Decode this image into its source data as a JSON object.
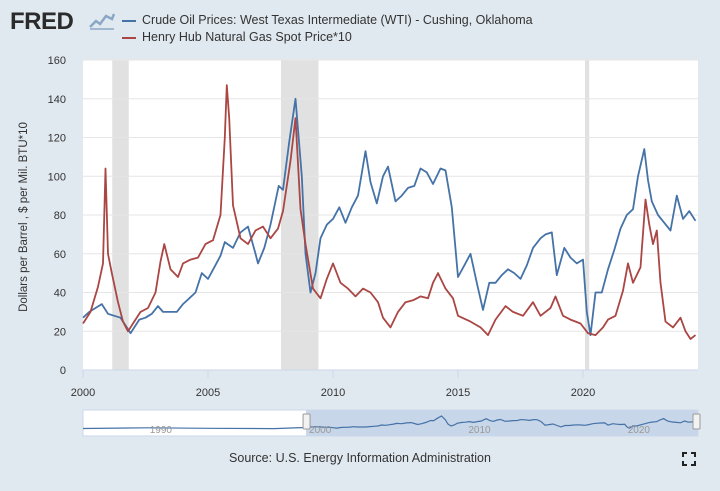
{
  "header": {
    "logo_text": "FRED",
    "logo_icon": "fred-chart-icon"
  },
  "legend": [
    {
      "label": "Crude Oil Prices: West Texas Intermediate (WTI) - Cushing, Oklahoma",
      "color": "#4572a7"
    },
    {
      "label": "Henry Hub Natural Gas Spot Price*10",
      "color": "#aa4643"
    }
  ],
  "source": "Source: U.S. Energy Information Administration",
  "fullscreen_icon": "fullscreen-icon",
  "chart_data": {
    "type": "line",
    "title": "",
    "xlabel": "",
    "ylabel": "Dollars per Barrel , $ per Mil. BTU*10",
    "ylim": [
      0,
      160
    ],
    "xlim": [
      2000,
      2024.6
    ],
    "yticks": [
      "0",
      "20",
      "40",
      "60",
      "80",
      "100",
      "120",
      "140",
      "160"
    ],
    "xticks": [
      "2000",
      "2005",
      "2010",
      "2015",
      "2020"
    ],
    "recessions": [
      [
        2001.17,
        2001.83
      ],
      [
        2007.92,
        2009.42
      ],
      [
        2020.08,
        2020.25
      ]
    ],
    "series": [
      {
        "name": "Crude Oil Prices: West Texas Intermediate (WTI) - Cushing, Oklahoma",
        "x": [
          2000.0,
          2000.25,
          2000.5,
          2000.75,
          2001.0,
          2001.25,
          2001.5,
          2001.75,
          2001.9,
          2002.25,
          2002.5,
          2002.75,
          2003.0,
          2003.2,
          2003.5,
          2003.75,
          2004.0,
          2004.25,
          2004.5,
          2004.75,
          2005.0,
          2005.25,
          2005.5,
          2005.67,
          2006.0,
          2006.3,
          2006.6,
          2006.9,
          2007.0,
          2007.25,
          2007.5,
          2007.83,
          2008.0,
          2008.25,
          2008.5,
          2008.75,
          2008.9,
          2009.1,
          2009.3,
          2009.5,
          2009.75,
          2010.0,
          2010.25,
          2010.5,
          2010.75,
          2011.0,
          2011.3,
          2011.5,
          2011.75,
          2012.0,
          2012.2,
          2012.5,
          2012.75,
          2013.0,
          2013.25,
          2013.5,
          2013.75,
          2014.0,
          2014.3,
          2014.5,
          2014.75,
          2015.0,
          2015.25,
          2015.5,
          2015.75,
          2016.0,
          2016.25,
          2016.5,
          2016.75,
          2017.0,
          2017.25,
          2017.5,
          2017.75,
          2018.0,
          2018.3,
          2018.5,
          2018.75,
          2018.95,
          2019.25,
          2019.5,
          2019.75,
          2020.0,
          2020.15,
          2020.3,
          2020.5,
          2020.75,
          2021.0,
          2021.25,
          2021.5,
          2021.75,
          2022.0,
          2022.2,
          2022.45,
          2022.6,
          2022.75,
          2023.0,
          2023.25,
          2023.5,
          2023.75,
          2024.0,
          2024.25,
          2024.5
        ],
        "values": [
          27,
          30,
          32,
          34,
          29,
          28,
          27,
          22,
          19,
          26,
          27,
          29,
          33,
          30,
          30,
          30,
          34,
          37,
          40,
          50,
          47,
          53,
          59,
          66,
          63,
          71,
          74,
          60,
          55,
          63,
          75,
          95,
          93,
          118,
          140,
          100,
          60,
          40,
          50,
          68,
          75,
          78,
          84,
          76,
          84,
          90,
          113,
          97,
          86,
          100,
          105,
          87,
          90,
          94,
          95,
          104,
          102,
          96,
          104,
          103,
          84,
          48,
          54,
          60,
          45,
          31,
          45,
          45,
          49,
          52,
          50,
          47,
          54,
          63,
          68,
          70,
          71,
          49,
          63,
          58,
          55,
          57,
          30,
          18,
          40,
          40,
          52,
          62,
          73,
          80,
          83,
          100,
          114,
          98,
          87,
          80,
          76,
          72,
          90,
          78,
          82,
          77
        ]
      },
      {
        "name": "Henry Hub Natural Gas Spot Price*10",
        "x": [
          2000.0,
          2000.3,
          2000.6,
          2000.8,
          2000.9,
          2001.0,
          2001.15,
          2001.4,
          2001.6,
          2001.8,
          2002.0,
          2002.3,
          2002.6,
          2002.9,
          2003.1,
          2003.25,
          2003.5,
          2003.8,
          2004.0,
          2004.3,
          2004.6,
          2004.9,
          2005.2,
          2005.5,
          2005.67,
          2005.75,
          2005.85,
          2006.0,
          2006.3,
          2006.6,
          2006.9,
          2007.2,
          2007.5,
          2007.8,
          2008.0,
          2008.3,
          2008.5,
          2008.7,
          2008.9,
          2009.2,
          2009.5,
          2009.75,
          2010.0,
          2010.3,
          2010.6,
          2010.9,
          2011.2,
          2011.5,
          2011.8,
          2012.0,
          2012.3,
          2012.6,
          2012.9,
          2013.2,
          2013.5,
          2013.8,
          2014.0,
          2014.2,
          2014.5,
          2014.8,
          2015.0,
          2015.5,
          2015.9,
          2016.2,
          2016.5,
          2016.9,
          2017.2,
          2017.6,
          2018.0,
          2018.3,
          2018.7,
          2018.9,
          2019.2,
          2019.5,
          2019.9,
          2020.2,
          2020.5,
          2020.8,
          2021.0,
          2021.3,
          2021.6,
          2021.8,
          2022.0,
          2022.3,
          2022.5,
          2022.65,
          2022.8,
          2022.95,
          2023.1,
          2023.3,
          2023.6,
          2023.9,
          2024.1,
          2024.3,
          2024.5
        ],
        "values": [
          24,
          30,
          43,
          55,
          104,
          60,
          50,
          35,
          25,
          20,
          24,
          30,
          32,
          40,
          56,
          65,
          52,
          48,
          55,
          57,
          58,
          65,
          67,
          80,
          120,
          147,
          130,
          85,
          68,
          65,
          72,
          74,
          68,
          73,
          82,
          108,
          130,
          83,
          65,
          42,
          37,
          47,
          55,
          45,
          42,
          38,
          42,
          40,
          35,
          27,
          22,
          30,
          35,
          36,
          38,
          37,
          45,
          50,
          42,
          37,
          28,
          25,
          22,
          18,
          26,
          33,
          30,
          28,
          35,
          28,
          32,
          38,
          28,
          26,
          24,
          19,
          18,
          22,
          26,
          28,
          41,
          55,
          45,
          53,
          88,
          75,
          65,
          72,
          45,
          25,
          22,
          27,
          20,
          16,
          18
        ]
      }
    ]
  },
  "navigator": {
    "labels": [
      "1990",
      "2000",
      "2010",
      "2020"
    ]
  }
}
